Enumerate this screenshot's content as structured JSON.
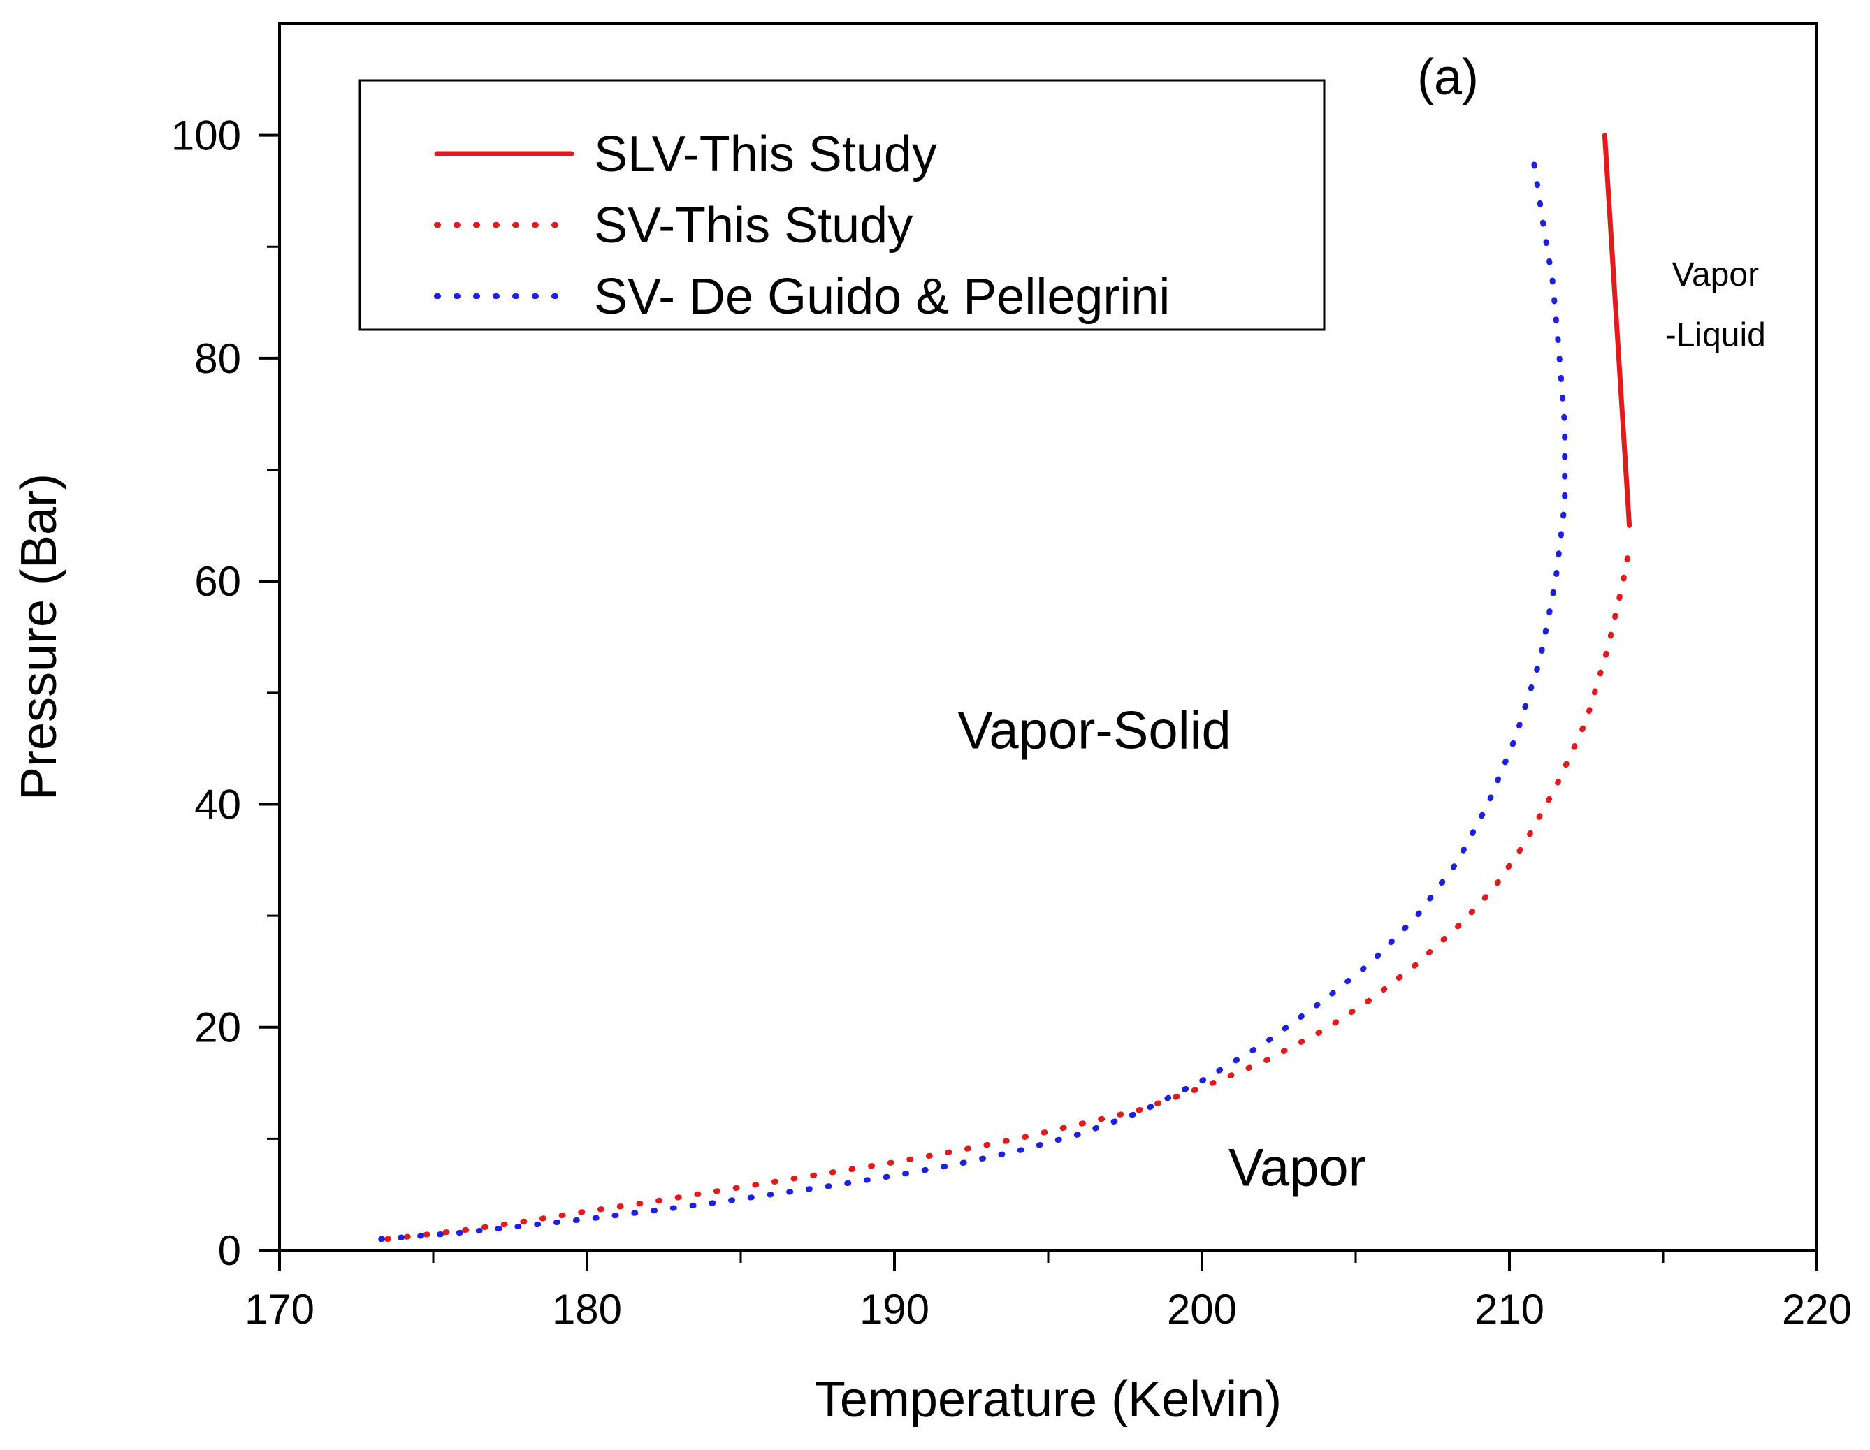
{
  "chart_data": {
    "type": "line",
    "title": "",
    "panel_label": "(a)",
    "xlabel": "Temperature (Kelvin)",
    "ylabel": "Pressure (Bar)",
    "xlim": [
      170,
      220
    ],
    "ylim": [
      0,
      110
    ],
    "x_ticks": [
      170,
      180,
      190,
      200,
      210,
      220
    ],
    "y_ticks": [
      0,
      20,
      40,
      60,
      80,
      100
    ],
    "x_tick_labels": [
      "170",
      "180",
      "190",
      "200",
      "210",
      "220"
    ],
    "y_tick_labels": [
      "0",
      "20",
      "40",
      "60",
      "80",
      "100"
    ],
    "grid": false,
    "legend_position": "top-left",
    "series": [
      {
        "name": "SLV-This Study",
        "style": "solid",
        "color": "#e31a1c",
        "x": [
          213.1,
          213.9
        ],
        "y": [
          100,
          65
        ]
      },
      {
        "name": "SV-This Study",
        "style": "dotted",
        "color": "#e31a1c",
        "x": [
          173.5,
          176,
          178,
          180,
          182,
          184,
          186,
          188,
          190,
          192,
          194,
          196,
          198,
          200,
          202,
          204,
          205.5,
          207,
          208.5,
          209.5,
          210.5,
          211.5,
          212.5,
          213.2,
          213.7,
          213.9
        ],
        "y": [
          1,
          1.8,
          2.6,
          3.5,
          4.3,
          5.2,
          6.1,
          7,
          7.9,
          8.9,
          10,
          11.3,
          12.6,
          14.6,
          16.9,
          19.8,
          22.5,
          25.7,
          29.5,
          32.5,
          36.5,
          41.5,
          47.5,
          54,
          60,
          63
        ]
      },
      {
        "name": "SV- De Guido & Pellegrini",
        "style": "dotted",
        "color": "#1f1fe0",
        "x": [
          173.3,
          176,
          178,
          180,
          182,
          184,
          186,
          188,
          190,
          192,
          194,
          196,
          198,
          200,
          202,
          204,
          205.5,
          207,
          208.3,
          209.3,
          210.2,
          211,
          211.5,
          211.8,
          211.8,
          211.6,
          211.4,
          211.1,
          210.8
        ],
        "y": [
          1,
          1.6,
          2.2,
          2.8,
          3.5,
          4.2,
          5,
          5.8,
          6.7,
          7.7,
          8.9,
          10.4,
          12.4,
          15.2,
          18.5,
          22.5,
          25.8,
          30,
          34.8,
          40,
          46,
          53,
          60,
          67,
          74,
          81,
          87,
          92,
          97.5
        ]
      }
    ],
    "annotations": [
      {
        "name": "region-vapor-solid",
        "text": "Vapor-Solid",
        "x": 196.5,
        "y": 45
      },
      {
        "name": "region-vapor",
        "text": "Vapor",
        "x": 203.1,
        "y": 5.8
      },
      {
        "name": "region-vapor-liquid-line1",
        "text": "Vapor",
        "x": 216.7,
        "y": 86.5
      },
      {
        "name": "region-vapor-liquid-line2",
        "text": "-Liquid",
        "x": 216.7,
        "y": 81.1
      }
    ]
  }
}
